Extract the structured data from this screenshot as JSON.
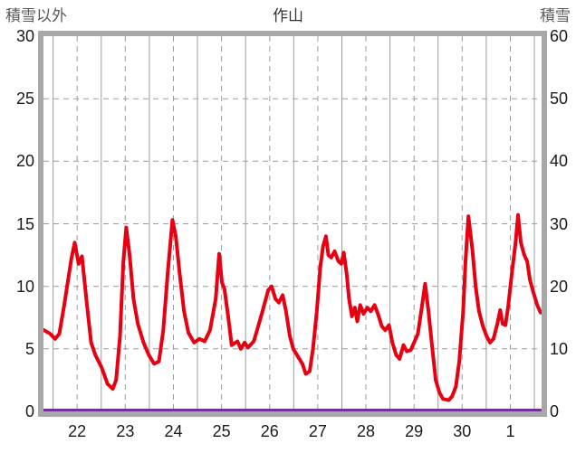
{
  "header": {
    "left_axis_title": "積雪以外",
    "title": "作山",
    "right_axis_title": "積雪"
  },
  "chart_data": {
    "type": "line",
    "title": "作山",
    "grid": {
      "color": "#9c9c9c",
      "horizontal_style": "dashed",
      "day_line_style": "solid",
      "halfday_line_style": "dashed"
    },
    "left_axis": {
      "label": "積雪以外",
      "min": 0,
      "max": 30,
      "tick_step": 5,
      "ticks": [
        30,
        25,
        20,
        15,
        10,
        5,
        0
      ]
    },
    "right_axis": {
      "label": "積雪",
      "min": 0,
      "max": 60,
      "tick_step": 10,
      "ticks": [
        60,
        50,
        40,
        30,
        20,
        10,
        0
      ]
    },
    "x_axis": {
      "labels": [
        "22",
        "23",
        "24",
        "25",
        "26",
        "27",
        "28",
        "29",
        "30",
        "1"
      ],
      "domain": [
        -0.2,
        10.15
      ],
      "days_shown": 10
    },
    "series": [
      {
        "name": "積雪以外",
        "axis": "left",
        "color": "#e60012",
        "width": 4,
        "points": [
          [
            -0.19,
            6.5
          ],
          [
            -0.06,
            6.2
          ],
          [
            0.04,
            5.8
          ],
          [
            0.13,
            6.2
          ],
          [
            0.23,
            8.5
          ],
          [
            0.38,
            12.2
          ],
          [
            0.45,
            13.5
          ],
          [
            0.53,
            11.8
          ],
          [
            0.6,
            12.4
          ],
          [
            0.69,
            9.0
          ],
          [
            0.79,
            5.5
          ],
          [
            0.88,
            4.5
          ],
          [
            1.01,
            3.5
          ],
          [
            1.13,
            2.2
          ],
          [
            1.24,
            1.8
          ],
          [
            1.31,
            2.5
          ],
          [
            1.39,
            6.0
          ],
          [
            1.46,
            12.0
          ],
          [
            1.52,
            14.7
          ],
          [
            1.59,
            12.5
          ],
          [
            1.67,
            9.0
          ],
          [
            1.76,
            7.0
          ],
          [
            1.88,
            5.5
          ],
          [
            1.99,
            4.5
          ],
          [
            2.1,
            3.8
          ],
          [
            2.2,
            4.0
          ],
          [
            2.29,
            6.5
          ],
          [
            2.38,
            11.0
          ],
          [
            2.48,
            15.3
          ],
          [
            2.55,
            14.0
          ],
          [
            2.63,
            11.0
          ],
          [
            2.72,
            8.0
          ],
          [
            2.81,
            6.3
          ],
          [
            2.93,
            5.5
          ],
          [
            3.04,
            5.8
          ],
          [
            3.15,
            5.6
          ],
          [
            3.26,
            6.5
          ],
          [
            3.38,
            9.0
          ],
          [
            3.45,
            12.6
          ],
          [
            3.51,
            10.3
          ],
          [
            3.56,
            9.8
          ],
          [
            3.64,
            7.5
          ],
          [
            3.71,
            5.3
          ],
          [
            3.83,
            5.6
          ],
          [
            3.9,
            5.0
          ],
          [
            3.98,
            5.5
          ],
          [
            4.05,
            5.1
          ],
          [
            4.17,
            5.6
          ],
          [
            4.24,
            6.5
          ],
          [
            4.35,
            8.0
          ],
          [
            4.47,
            9.7
          ],
          [
            4.54,
            10.0
          ],
          [
            4.62,
            9.0
          ],
          [
            4.69,
            8.7
          ],
          [
            4.77,
            9.3
          ],
          [
            4.84,
            8.0
          ],
          [
            4.92,
            6.0
          ],
          [
            4.99,
            5.0
          ],
          [
            5.07,
            4.5
          ],
          [
            5.18,
            3.8
          ],
          [
            5.25,
            3.0
          ],
          [
            5.33,
            3.2
          ],
          [
            5.4,
            5.0
          ],
          [
            5.48,
            8.0
          ],
          [
            5.55,
            11.5
          ],
          [
            5.61,
            13.2
          ],
          [
            5.67,
            14.0
          ],
          [
            5.72,
            12.5
          ],
          [
            5.78,
            12.3
          ],
          [
            5.85,
            12.8
          ],
          [
            5.93,
            12.0
          ],
          [
            5.99,
            11.8
          ],
          [
            6.04,
            12.7
          ],
          [
            6.1,
            11.0
          ],
          [
            6.15,
            9.0
          ],
          [
            6.21,
            7.6
          ],
          [
            6.27,
            8.3
          ],
          [
            6.32,
            7.2
          ],
          [
            6.38,
            8.5
          ],
          [
            6.45,
            7.8
          ],
          [
            6.53,
            8.3
          ],
          [
            6.6,
            8.0
          ],
          [
            6.68,
            8.5
          ],
          [
            6.75,
            7.8
          ],
          [
            6.83,
            6.8
          ],
          [
            6.9,
            6.5
          ],
          [
            6.98,
            6.9
          ],
          [
            7.05,
            5.5
          ],
          [
            7.13,
            4.5
          ],
          [
            7.2,
            4.2
          ],
          [
            7.28,
            5.3
          ],
          [
            7.35,
            4.8
          ],
          [
            7.43,
            4.9
          ],
          [
            7.5,
            5.5
          ],
          [
            7.58,
            6.2
          ],
          [
            7.65,
            8.0
          ],
          [
            7.73,
            10.2
          ],
          [
            7.8,
            8.0
          ],
          [
            7.88,
            5.0
          ],
          [
            7.95,
            2.5
          ],
          [
            8.03,
            1.5
          ],
          [
            8.1,
            1.0
          ],
          [
            8.22,
            0.9
          ],
          [
            8.29,
            1.2
          ],
          [
            8.37,
            2.0
          ],
          [
            8.44,
            4.0
          ],
          [
            8.52,
            8.0
          ],
          [
            8.57,
            12.0
          ],
          [
            8.63,
            15.6
          ],
          [
            8.71,
            13.0
          ],
          [
            8.78,
            10.0
          ],
          [
            8.85,
            8.0
          ],
          [
            8.93,
            6.8
          ],
          [
            9.01,
            6.0
          ],
          [
            9.08,
            5.5
          ],
          [
            9.15,
            5.8
          ],
          [
            9.23,
            7.0
          ],
          [
            9.29,
            8.1
          ],
          [
            9.34,
            7.0
          ],
          [
            9.4,
            6.9
          ],
          [
            9.46,
            8.5
          ],
          [
            9.53,
            11.0
          ],
          [
            9.61,
            13.5
          ],
          [
            9.66,
            15.7
          ],
          [
            9.72,
            13.5
          ],
          [
            9.79,
            12.5
          ],
          [
            9.85,
            12.0
          ],
          [
            9.91,
            10.5
          ],
          [
            9.98,
            9.5
          ],
          [
            10.06,
            8.5
          ],
          [
            10.13,
            7.9
          ]
        ]
      },
      {
        "name": "積雪",
        "axis": "right",
        "color": "#7030a0",
        "width": 3,
        "points": [
          [
            -0.19,
            0
          ],
          [
            10.13,
            0
          ]
        ]
      }
    ]
  }
}
